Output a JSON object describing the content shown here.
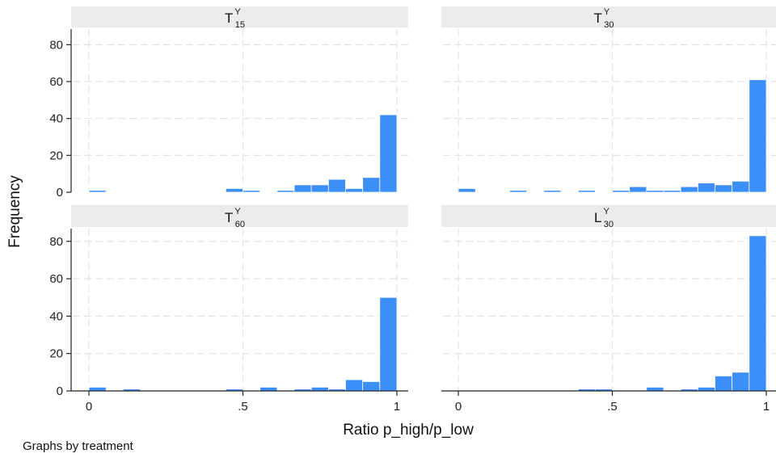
{
  "chart_data": {
    "type": "bar",
    "ylabel": "Frequency",
    "xlabel": "Ratio p_high/p_low",
    "note": "Graphs by treatment",
    "xlim": [
      -0.05,
      1.0
    ],
    "ylim": [
      0,
      87
    ],
    "x_ticks": [
      0,
      0.5,
      1
    ],
    "x_tick_labels": [
      "0",
      ".5",
      "1"
    ],
    "y_ticks": [
      0,
      20,
      40,
      60,
      80
    ],
    "y_tick_labels": [
      "0",
      "20",
      "40",
      "60",
      "80"
    ],
    "grid": true,
    "colors": {
      "bar": "#3c8ef8",
      "bar_edge": "#ffffff",
      "strip_bg": "#ebebeb",
      "grid": "#e2e2e2",
      "axis": "#222222"
    },
    "panels": [
      {
        "title_base": "T",
        "title_sup": "Y",
        "title_sub": "15",
        "bins": [
          {
            "x0": 0.0,
            "x1": 0.0556,
            "count": 1
          },
          {
            "x0": 0.4444,
            "x1": 0.5,
            "count": 2
          },
          {
            "x0": 0.5,
            "x1": 0.5556,
            "count": 1
          },
          {
            "x0": 0.6111,
            "x1": 0.6667,
            "count": 1
          },
          {
            "x0": 0.6667,
            "x1": 0.7222,
            "count": 4
          },
          {
            "x0": 0.7222,
            "x1": 0.7778,
            "count": 4
          },
          {
            "x0": 0.7778,
            "x1": 0.8333,
            "count": 7
          },
          {
            "x0": 0.8333,
            "x1": 0.8889,
            "count": 2
          },
          {
            "x0": 0.8889,
            "x1": 0.9444,
            "count": 8
          },
          {
            "x0": 0.9444,
            "x1": 1.0,
            "count": 42
          }
        ]
      },
      {
        "title_base": "T",
        "title_sup": "Y",
        "title_sub": "30",
        "bins": [
          {
            "x0": 0.0,
            "x1": 0.0556,
            "count": 2
          },
          {
            "x0": 0.1667,
            "x1": 0.2222,
            "count": 1
          },
          {
            "x0": 0.2778,
            "x1": 0.3333,
            "count": 1
          },
          {
            "x0": 0.3889,
            "x1": 0.4444,
            "count": 1
          },
          {
            "x0": 0.5,
            "x1": 0.5556,
            "count": 1
          },
          {
            "x0": 0.5556,
            "x1": 0.6111,
            "count": 3
          },
          {
            "x0": 0.6111,
            "x1": 0.6667,
            "count": 1
          },
          {
            "x0": 0.6667,
            "x1": 0.7222,
            "count": 1
          },
          {
            "x0": 0.7222,
            "x1": 0.7778,
            "count": 3
          },
          {
            "x0": 0.7778,
            "x1": 0.8333,
            "count": 5
          },
          {
            "x0": 0.8333,
            "x1": 0.8889,
            "count": 4
          },
          {
            "x0": 0.8889,
            "x1": 0.9444,
            "count": 6
          },
          {
            "x0": 0.9444,
            "x1": 1.0,
            "count": 61
          }
        ]
      },
      {
        "title_base": "T",
        "title_sup": "Y",
        "title_sub": "60",
        "bins": [
          {
            "x0": 0.0,
            "x1": 0.0556,
            "count": 2
          },
          {
            "x0": 0.1111,
            "x1": 0.1667,
            "count": 1
          },
          {
            "x0": 0.4444,
            "x1": 0.5,
            "count": 1
          },
          {
            "x0": 0.5556,
            "x1": 0.6111,
            "count": 2
          },
          {
            "x0": 0.6667,
            "x1": 0.7222,
            "count": 1
          },
          {
            "x0": 0.7222,
            "x1": 0.7778,
            "count": 2
          },
          {
            "x0": 0.7778,
            "x1": 0.8333,
            "count": 1
          },
          {
            "x0": 0.8333,
            "x1": 0.8889,
            "count": 6
          },
          {
            "x0": 0.8889,
            "x1": 0.9444,
            "count": 5
          },
          {
            "x0": 0.9444,
            "x1": 1.0,
            "count": 50
          }
        ]
      },
      {
        "title_base": "L",
        "title_sup": "Y",
        "title_sub": "30",
        "bins": [
          {
            "x0": 0.3889,
            "x1": 0.4444,
            "count": 1
          },
          {
            "x0": 0.4444,
            "x1": 0.5,
            "count": 1
          },
          {
            "x0": 0.6111,
            "x1": 0.6667,
            "count": 2
          },
          {
            "x0": 0.7222,
            "x1": 0.7778,
            "count": 1
          },
          {
            "x0": 0.7778,
            "x1": 0.8333,
            "count": 2
          },
          {
            "x0": 0.8333,
            "x1": 0.8889,
            "count": 8
          },
          {
            "x0": 0.8889,
            "x1": 0.9444,
            "count": 10
          },
          {
            "x0": 0.9444,
            "x1": 1.0,
            "count": 83
          }
        ]
      }
    ]
  }
}
